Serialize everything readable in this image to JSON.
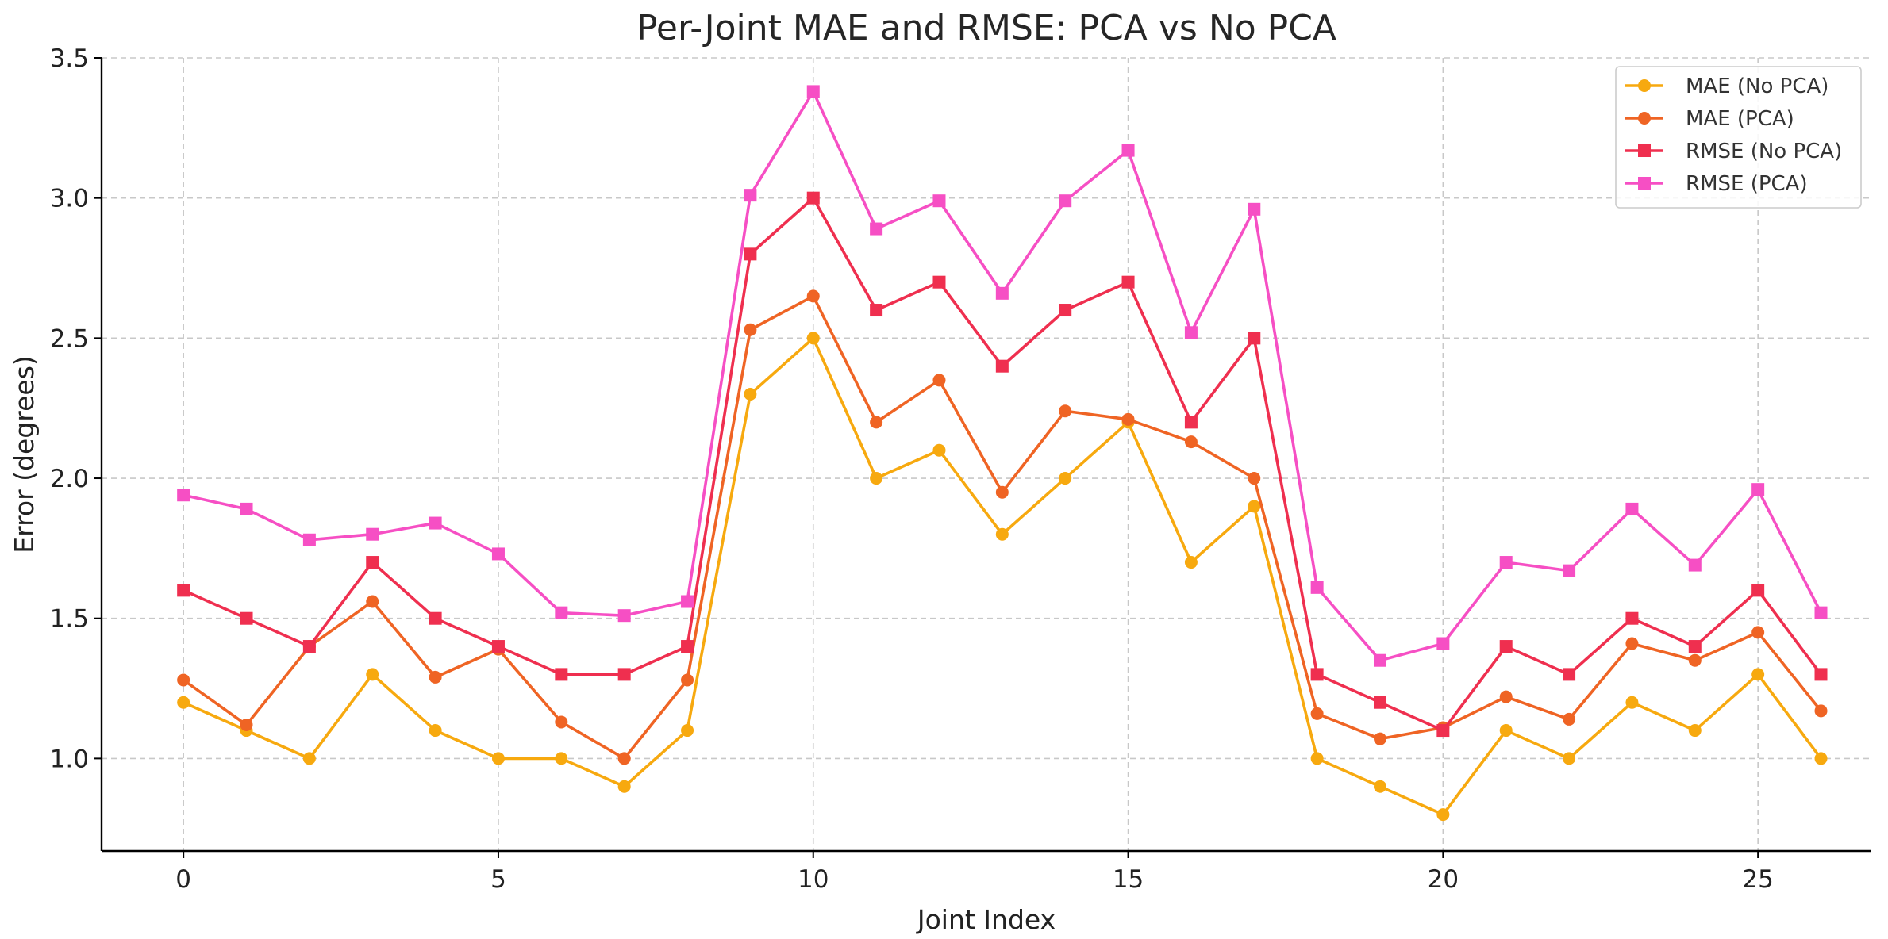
{
  "chart_data": {
    "type": "line",
    "title": "Per-Joint MAE and RMSE: PCA vs No PCA",
    "xlabel": "Joint Index",
    "ylabel": "Error (degrees)",
    "xlim": [
      -1.3,
      26.8
    ],
    "ylim": [
      0.67,
      3.5
    ],
    "xticks": [
      0,
      5,
      10,
      15,
      20,
      25
    ],
    "yticks": [
      1.0,
      1.5,
      2.0,
      2.5,
      3.0,
      3.5
    ],
    "ytick_labels": [
      "1.0",
      "1.5",
      "2.0",
      "2.5",
      "3.0",
      "3.5"
    ],
    "grid": true,
    "legend_position": "top-right",
    "x": [
      0,
      1,
      2,
      3,
      4,
      5,
      6,
      7,
      8,
      9,
      10,
      11,
      12,
      13,
      14,
      15,
      16,
      17,
      18,
      19,
      20,
      21,
      22,
      23,
      24,
      25,
      26
    ],
    "series": [
      {
        "name": "MAE (No PCA)",
        "color": "#f7a90f",
        "marker": "circle",
        "values": [
          1.2,
          1.1,
          1.0,
          1.3,
          1.1,
          1.0,
          1.0,
          0.9,
          1.1,
          2.3,
          2.5,
          2.0,
          2.1,
          1.8,
          2.0,
          2.2,
          1.7,
          1.9,
          1.0,
          0.9,
          0.8,
          1.1,
          1.0,
          1.2,
          1.1,
          1.3,
          1.0
        ]
      },
      {
        "name": "MAE (PCA)",
        "color": "#ef6424",
        "marker": "circle",
        "values": [
          1.28,
          1.12,
          1.4,
          1.56,
          1.29,
          1.39,
          1.13,
          1.0,
          1.28,
          2.53,
          2.65,
          2.2,
          2.35,
          1.95,
          2.24,
          2.21,
          2.13,
          2.0,
          1.16,
          1.07,
          1.11,
          1.22,
          1.14,
          1.41,
          1.35,
          1.45,
          1.17
        ]
      },
      {
        "name": "RMSE (No PCA)",
        "color": "#ef2f4f",
        "marker": "square",
        "values": [
          1.6,
          1.5,
          1.4,
          1.7,
          1.5,
          1.4,
          1.3,
          1.3,
          1.4,
          2.8,
          3.0,
          2.6,
          2.7,
          2.4,
          2.6,
          2.7,
          2.2,
          2.5,
          1.3,
          1.2,
          1.1,
          1.4,
          1.3,
          1.5,
          1.4,
          1.6,
          1.3
        ]
      },
      {
        "name": "RMSE (PCA)",
        "color": "#f64fc4",
        "marker": "square",
        "values": [
          1.94,
          1.89,
          1.78,
          1.8,
          1.84,
          1.73,
          1.52,
          1.51,
          1.56,
          3.01,
          3.38,
          2.89,
          2.99,
          2.66,
          2.99,
          3.17,
          2.52,
          2.96,
          1.61,
          1.35,
          1.41,
          1.7,
          1.67,
          1.89,
          1.69,
          1.96,
          1.52
        ]
      }
    ]
  }
}
